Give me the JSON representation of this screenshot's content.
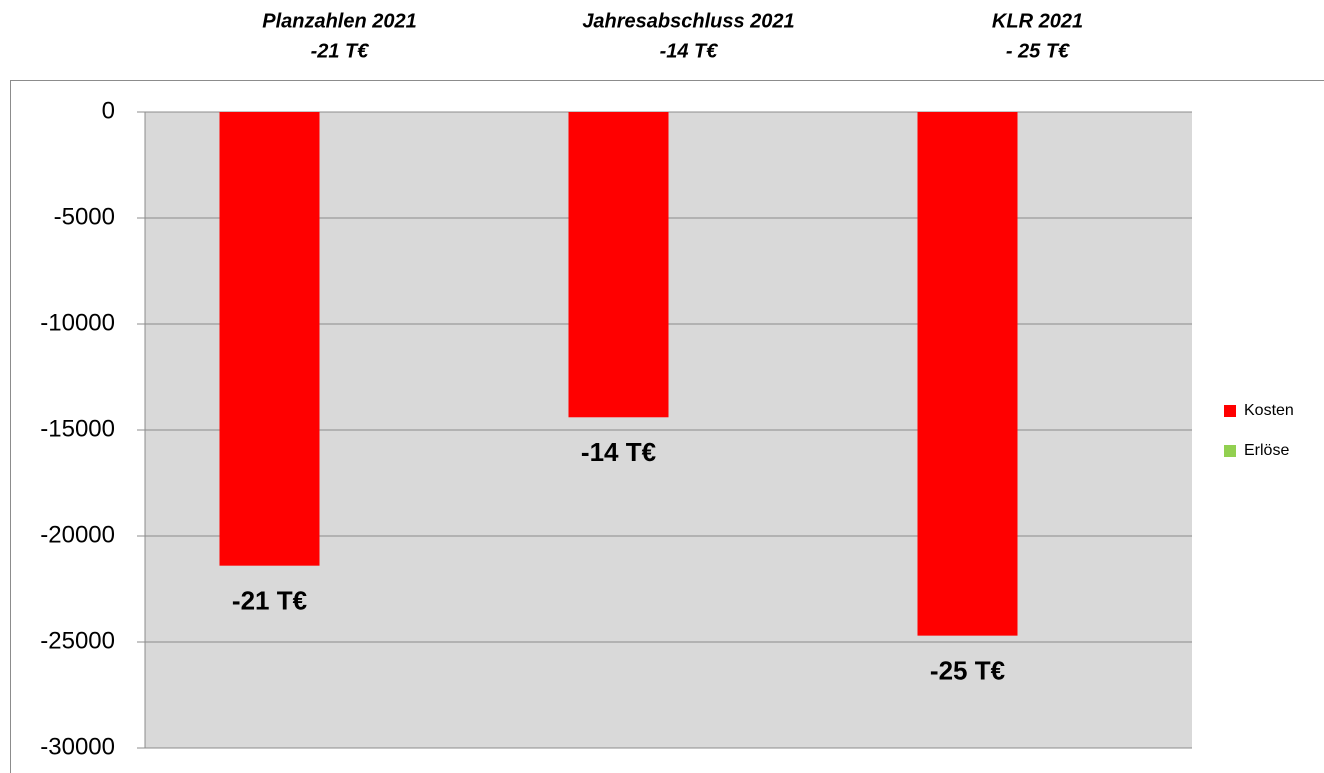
{
  "chart_data": {
    "type": "bar",
    "categories": [
      "Planzahlen 2021",
      "Jahresabschluss 2021",
      "KLR 2021"
    ],
    "category_sublabels": [
      "-21 T€",
      "-14 T€",
      "- 25 T€"
    ],
    "series": [
      {
        "name": "Kosten",
        "color": "#ff0000",
        "values": [
          -21400,
          -14400,
          -24700
        ],
        "value_labels": [
          "-21 T€",
          "-14 T€",
          "-25 T€"
        ]
      },
      {
        "name": "Erlöse",
        "color": "#92d050",
        "values": [
          null,
          null,
          null
        ]
      }
    ],
    "ylim": [
      -30000,
      0
    ],
    "yticks": [
      0,
      -5000,
      -10000,
      -15000,
      -20000,
      -25000,
      -30000
    ],
    "grid": true,
    "legend": "right"
  }
}
